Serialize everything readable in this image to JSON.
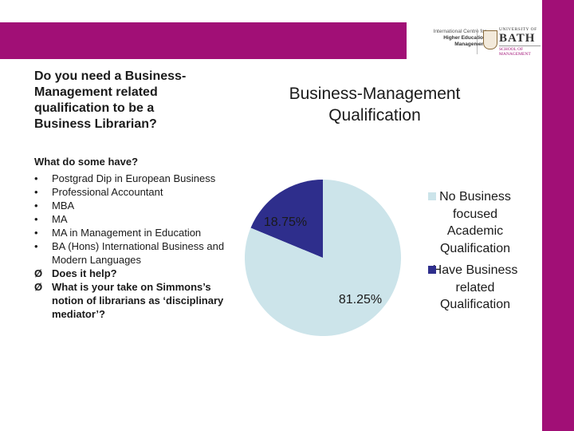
{
  "question": [
    "Do you need a Business-",
    "Management related",
    "qualification to be a",
    "Business Librarian?"
  ],
  "have_title": "What do some have?",
  "list": [
    {
      "marker": "•",
      "text": "Postgrad Dip in European Business",
      "bold": false
    },
    {
      "marker": "•",
      "text": "Professional Accountant",
      "bold": false
    },
    {
      "marker": "•",
      "text": "MBA",
      "bold": false
    },
    {
      "marker": "•",
      "text": "MA",
      "bold": false
    },
    {
      "marker": "•",
      "text": "MA in Management in Education",
      "bold": false
    },
    {
      "marker": "•",
      "text": "BA (Hons) International Business and Modern Languages",
      "bold": false
    },
    {
      "marker": "Ø",
      "text": "Does it help?",
      "bold": true
    },
    {
      "marker": "Ø",
      "text": "What is your take on Simmons’s notion of librarians as ‘disciplinary mediator’?",
      "bold": true
    }
  ],
  "logo": {
    "centre_lines": [
      "International Centre for",
      "Higher Education",
      "Management"
    ],
    "university_of": "UNIVERSITY OF",
    "bath": "BATH",
    "school": "SCHOOL OF MANAGEMENT"
  },
  "colors": {
    "brand": "#a10f76",
    "slice_no": "#cce4ea",
    "slice_have": "#2e2e8c"
  },
  "chart_data": {
    "type": "pie",
    "title": [
      "Business-Management",
      "Qualification"
    ],
    "categories": [
      "No Business focused Academic Qualification",
      "Have Business related Qualification"
    ],
    "values": [
      81.25,
      18.75
    ],
    "labels": [
      "81.25%",
      "18.75%"
    ],
    "legend": "right"
  }
}
